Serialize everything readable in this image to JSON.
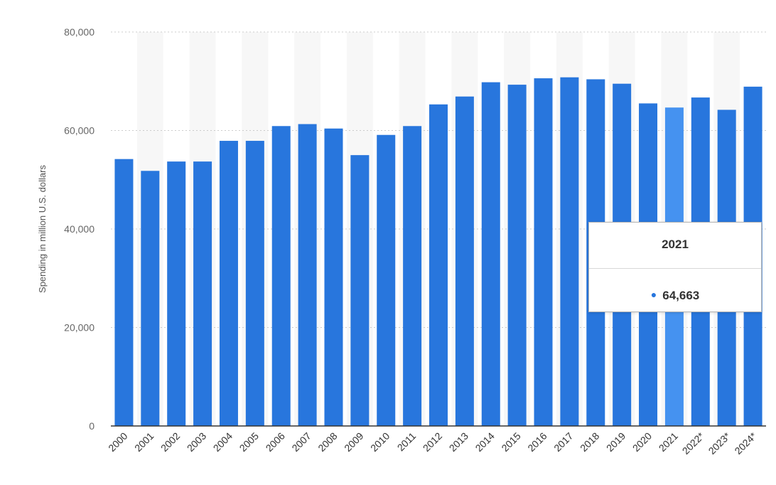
{
  "chart_data": {
    "type": "bar",
    "ylabel": "Spending in million U.S. dollars",
    "xlabel": "",
    "ylim": [
      0,
      80000
    ],
    "yticks": [
      0,
      20000,
      40000,
      60000,
      80000
    ],
    "ytick_labels": [
      "0",
      "20,000",
      "40,000",
      "60,000",
      "80,000"
    ],
    "grid": true,
    "categories": [
      "2000",
      "2001",
      "2002",
      "2003",
      "2004",
      "2005",
      "2006",
      "2007",
      "2008",
      "2009",
      "2010",
      "2011",
      "2012",
      "2013",
      "2014",
      "2015",
      "2016",
      "2017",
      "2018",
      "2019",
      "2020",
      "2021",
      "2022*",
      "2023*",
      "2024*"
    ],
    "values": [
      54200,
      51800,
      53700,
      53700,
      57900,
      57900,
      60900,
      61300,
      60400,
      55000,
      59100,
      60900,
      65300,
      66900,
      69800,
      69300,
      70600,
      70800,
      70400,
      69500,
      65500,
      64663,
      66700,
      64200,
      68900
    ],
    "highlighted_index": 21,
    "colors": {
      "bar": "#2876dd",
      "bar_highlight": "#4592f0",
      "band": "#f7f7f7",
      "grid": "#cccccc",
      "axis": "#333333"
    }
  },
  "tooltip": {
    "title": "2021",
    "value": "64,663"
  }
}
